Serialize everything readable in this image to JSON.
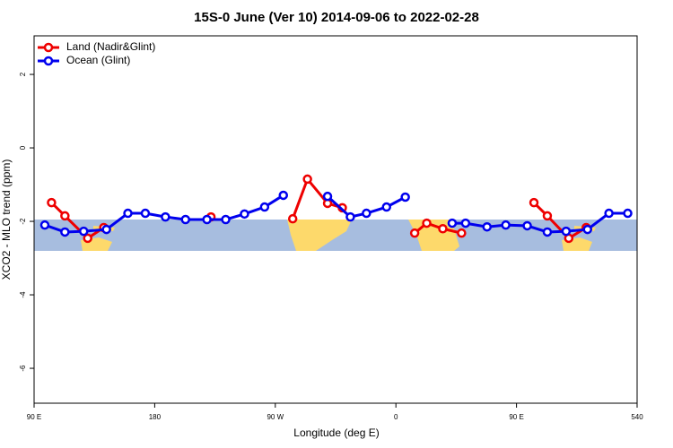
{
  "chart_data": {
    "type": "line",
    "title": "15S-0 June (Ver 10)   2014-09-06 to 2022-02-28",
    "x_label": "Longitude (deg E)",
    "y_label": "XCO2 - MLO trend (ppm)",
    "xlim": [
      90,
      540
    ],
    "xticks": [
      {
        "value": 90,
        "label": "90 E"
      },
      180,
      {
        "value": 270,
        "label": "90 W"
      },
      {
        "value": 360,
        "label": "0"
      },
      {
        "value": 450,
        "label": "90 E"
      },
      540
    ],
    "ylim": [
      -6.95,
      3.05
    ],
    "yticks": [
      2,
      0,
      -2,
      -4,
      -6
    ],
    "legend": "top-left",
    "series": [
      {
        "name": "Land (Nadir&Glint)",
        "color": "#ee0000",
        "x": [
          103,
          113,
          130,
          142,
          null,
          222,
          null,
          283,
          294,
          309,
          320,
          null,
          374,
          383,
          395,
          409,
          null,
          463,
          473,
          489,
          502
        ],
        "values": [
          -1.49,
          -1.85,
          -2.46,
          -2.17,
          null,
          -1.88,
          null,
          -1.93,
          -0.85,
          -1.51,
          -1.63,
          null,
          -2.32,
          -2.05,
          -2.2,
          -2.32,
          null,
          -1.49,
          -1.85,
          -2.46,
          -2.17
        ]
      },
      {
        "name": "Ocean (Glint)",
        "color": "#0000ee",
        "x": [
          98,
          113,
          127,
          144,
          160,
          173,
          188,
          203,
          219,
          233,
          247,
          262,
          276,
          null,
          309,
          326,
          338,
          353,
          367,
          null,
          402,
          412,
          428,
          442,
          458,
          473,
          487,
          503,
          519,
          533
        ],
        "values": [
          -2.1,
          -2.29,
          -2.27,
          -2.22,
          -1.78,
          -1.78,
          -1.88,
          -1.95,
          -1.95,
          -1.95,
          -1.8,
          -1.61,
          -1.29,
          null,
          -1.32,
          -1.88,
          -1.78,
          -1.61,
          -1.34,
          null,
          -2.05,
          -2.05,
          -2.15,
          -2.1,
          -2.12,
          -2.29,
          -2.27,
          -2.22,
          -1.78,
          -1.78
        ]
      }
    ]
  }
}
